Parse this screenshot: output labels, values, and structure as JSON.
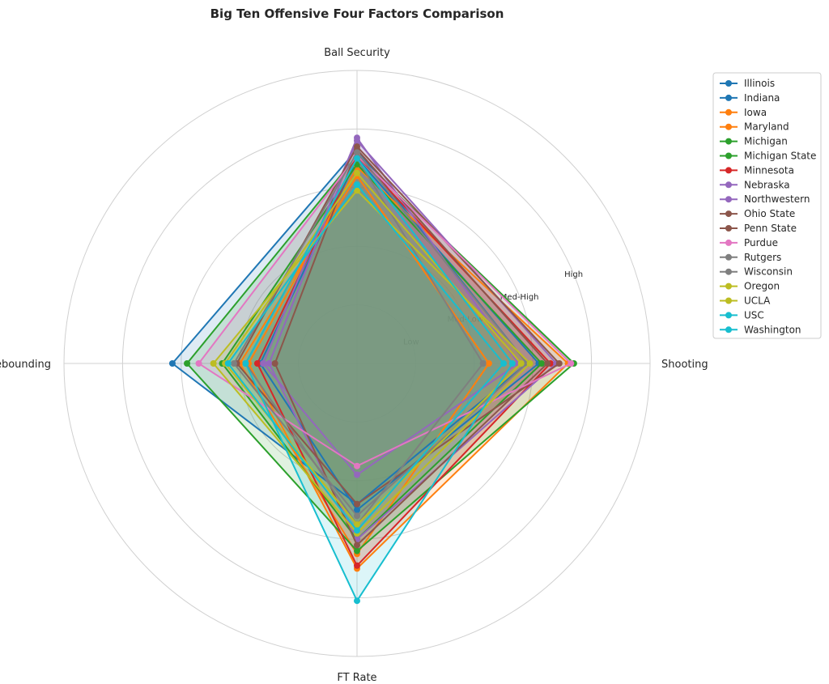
{
  "chart_data": {
    "type": "radar",
    "title": "Big Ten Offensive Four Factors Comparison",
    "axes": [
      "Ball Security",
      "Shooting",
      "FT Rate",
      "Off Rebounding"
    ],
    "ring_labels": [
      "Low",
      "Med-Low",
      "Med-High",
      "High"
    ],
    "ring_levels": [
      0.2,
      0.4,
      0.6,
      0.8,
      1.0
    ],
    "range": [
      0,
      1
    ],
    "grid": true,
    "legend_position": "right",
    "series": [
      {
        "name": "Illinois",
        "color": "#1f77b4",
        "values": [
          0.73,
          0.58,
          0.48,
          0.63
        ]
      },
      {
        "name": "Indiana",
        "color": "#1f77b4",
        "values": [
          0.7,
          0.62,
          0.5,
          0.33
        ]
      },
      {
        "name": "Iowa",
        "color": "#ff7f0e",
        "values": [
          0.64,
          0.45,
          0.65,
          0.4
        ]
      },
      {
        "name": "Maryland",
        "color": "#ff7f0e",
        "values": [
          0.67,
          0.72,
          0.7,
          0.37
        ]
      },
      {
        "name": "Michigan",
        "color": "#2ca02c",
        "values": [
          0.71,
          0.74,
          0.64,
          0.58
        ]
      },
      {
        "name": "Michigan State",
        "color": "#2ca02c",
        "values": [
          0.68,
          0.63,
          0.6,
          0.46
        ]
      },
      {
        "name": "Minnesota",
        "color": "#d62728",
        "values": [
          0.71,
          0.66,
          0.69,
          0.34
        ]
      },
      {
        "name": "Nebraska",
        "color": "#9467bd",
        "values": [
          0.77,
          0.55,
          0.38,
          0.32
        ]
      },
      {
        "name": "Northwestern",
        "color": "#9467bd",
        "values": [
          0.76,
          0.68,
          0.6,
          0.3
        ]
      },
      {
        "name": "Ohio State",
        "color": "#8c564b",
        "values": [
          0.74,
          0.69,
          0.48,
          0.41
        ]
      },
      {
        "name": "Penn State",
        "color": "#8c564b",
        "values": [
          0.73,
          0.65,
          0.62,
          0.28
        ]
      },
      {
        "name": "Purdue",
        "color": "#e377c2",
        "values": [
          0.71,
          0.73,
          0.35,
          0.54
        ]
      },
      {
        "name": "Rutgers",
        "color": "#7f7f7f",
        "values": [
          0.7,
          0.43,
          0.55,
          0.38
        ]
      },
      {
        "name": "Wisconsin",
        "color": "#7f7f7f",
        "values": [
          0.72,
          0.58,
          0.52,
          0.42
        ]
      },
      {
        "name": "Oregon",
        "color": "#bcbd22",
        "values": [
          0.59,
          0.59,
          0.58,
          0.49
        ]
      },
      {
        "name": "UCLA",
        "color": "#bcbd22",
        "values": [
          0.65,
          0.56,
          0.55,
          0.45
        ]
      },
      {
        "name": "USC",
        "color": "#17becf",
        "values": [
          0.7,
          0.53,
          0.81,
          0.38
        ]
      },
      {
        "name": "Washington",
        "color": "#17becf",
        "values": [
          0.61,
          0.5,
          0.57,
          0.44
        ]
      }
    ]
  }
}
